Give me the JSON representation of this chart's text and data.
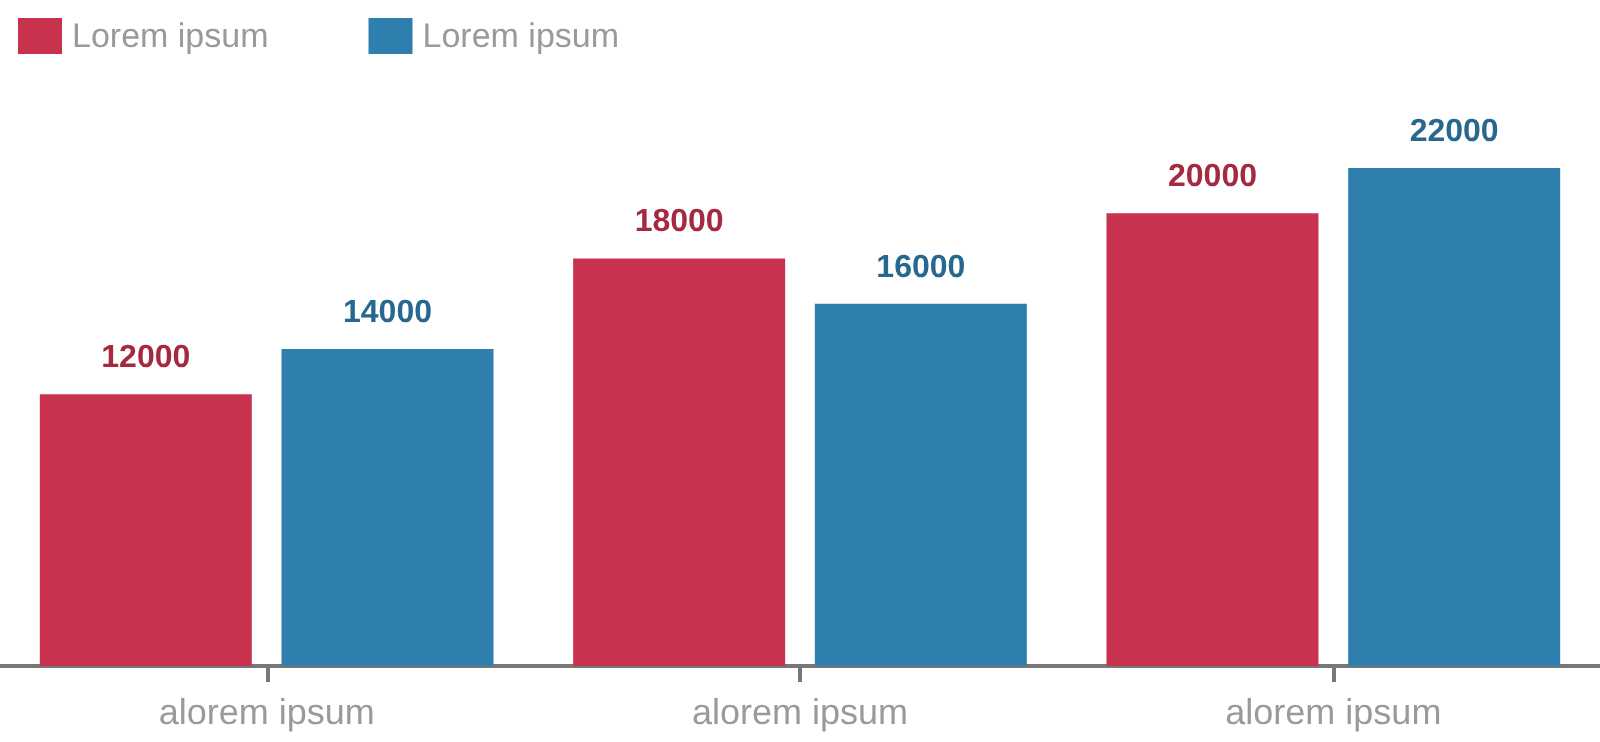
{
  "chart_data": {
    "type": "bar",
    "categories": [
      "alorem ipsum",
      "alorem ipsum",
      "alorem ipsum"
    ],
    "series": [
      {
        "name": "Lorem ipsum",
        "color": "#c8324f",
        "values": [
          12000,
          18000,
          20000
        ]
      },
      {
        "name": "Lorem ipsum",
        "color": "#2f7fae",
        "values": [
          14000,
          16000,
          22000
        ]
      }
    ],
    "data_labels": true,
    "legend": "top left"
  }
}
